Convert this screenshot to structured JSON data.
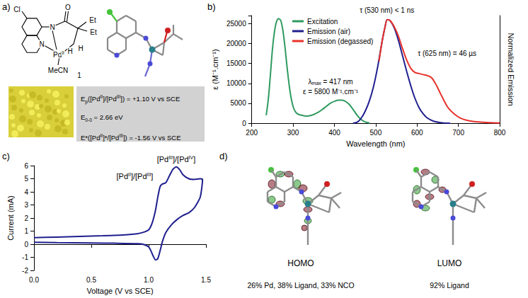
{
  "panel_labels": [
    "a)",
    "b)",
    "c)",
    "d)"
  ],
  "panel_a": {
    "structure_labels": [
      "Cl",
      "N",
      "O",
      "Et",
      "Et",
      "N",
      "PdII",
      "MeCN",
      "H",
      "H"
    ],
    "compound_number": "1",
    "box_lines": [
      "Ep([PdII]/[PdIII]) = +1.10 V vs SCE",
      "E0-0 = 2.66 eV",
      "E*([PdII]*/[PdIII]) = -1.56 V vs SCE"
    ]
  },
  "panel_d": {
    "orbitals": [
      {
        "label": "HOMO",
        "composition": "26% Pd, 38% Ligand, 33% NCO"
      },
      {
        "label": "LUMO",
        "composition": "92% Ligand"
      }
    ]
  },
  "chart_data": [
    {
      "type": "line",
      "x_label": "Wavelength (nm)",
      "y_label": "ε (M⁻¹.cm⁻¹)",
      "y2_label": "Normalized Emission",
      "xlim": [
        200,
        800
      ],
      "xticks": [
        200,
        300,
        400,
        500,
        600,
        700,
        800
      ],
      "ylim": [
        0,
        27000
      ],
      "yticks": [
        0,
        5000,
        10000,
        15000,
        20000,
        25000
      ],
      "y2lim": [
        0,
        1.04
      ],
      "y2ticks": [],
      "grid": false,
      "legend": "upper left",
      "series": [
        {
          "name": "Excitation",
          "color": "#2f9a5f",
          "x": [
            235,
            240,
            245,
            250,
            255,
            260,
            265,
            270,
            275,
            280,
            285,
            290,
            295,
            300,
            305,
            310,
            320,
            330,
            340,
            350,
            360,
            370,
            380,
            390,
            400,
            410,
            417,
            425,
            435,
            445,
            455,
            465,
            475,
            485
          ],
          "values": [
            2000,
            6000,
            12000,
            18500,
            23000,
            25500,
            26200,
            25800,
            23500,
            19500,
            14500,
            10000,
            6500,
            4200,
            3000,
            2400,
            2000,
            1800,
            1900,
            2200,
            2700,
            3400,
            4200,
            5000,
            5500,
            5800,
            5800,
            5600,
            4800,
            3500,
            2000,
            900,
            300,
            80
          ]
        },
        {
          "name": "Emission (air)",
          "color": "#1f1f8f",
          "axis": "y2",
          "x": [
            445,
            455,
            465,
            475,
            485,
            495,
            505,
            515,
            522,
            528,
            535,
            545,
            555,
            565,
            575,
            585,
            595,
            605,
            615,
            625,
            640,
            660,
            680
          ],
          "values": [
            0,
            0.01,
            0.05,
            0.12,
            0.22,
            0.36,
            0.55,
            0.78,
            0.92,
            1.0,
            0.99,
            0.92,
            0.8,
            0.65,
            0.5,
            0.36,
            0.24,
            0.15,
            0.09,
            0.05,
            0.02,
            0.005,
            0
          ]
        },
        {
          "name": "Emission (degassed)",
          "color": "#e8322b",
          "axis": "y2",
          "x": [
            508,
            515,
            522,
            528,
            535,
            545,
            555,
            565,
            575,
            585,
            595,
            605,
            615,
            625,
            635,
            645,
            655,
            665,
            675,
            690,
            705,
            725,
            750,
            775,
            800
          ],
          "values": [
            0.6,
            0.78,
            0.92,
            1.0,
            0.99,
            0.93,
            0.84,
            0.72,
            0.61,
            0.53,
            0.49,
            0.48,
            0.47,
            0.46,
            0.44,
            0.38,
            0.3,
            0.22,
            0.15,
            0.09,
            0.05,
            0.025,
            0.012,
            0.006,
            0.003
          ]
        }
      ],
      "annotations": [
        "λmax = 417 nm",
        "ε = 5800 M⁻¹.cm⁻¹",
        "τ (530 nm) < 1 ns",
        "τ (625 nm) = 46 µs"
      ]
    },
    {
      "type": "line",
      "x_label": "Voltage (V vs SCE)",
      "y_label": "Current (mA)",
      "xlim": [
        0,
        1.5
      ],
      "xticks": [
        {
          "value": 0,
          "label": "0.0"
        },
        {
          "value": 0.5,
          "label": "0.5"
        },
        {
          "value": 1,
          "label": "1.0"
        },
        {
          "value": 1.5,
          "label": "1.5"
        }
      ],
      "ylim": [
        -2,
        6
      ],
      "yticks": [
        -2,
        -1,
        0,
        1,
        2,
        3,
        4,
        5,
        6
      ],
      "grid": false,
      "series": [
        {
          "color": "#1f1f8f",
          "x": [
            0,
            0.2,
            0.4,
            0.6,
            0.8,
            0.9,
            0.95,
            1.0,
            1.03,
            1.06,
            1.08,
            1.1,
            1.12,
            1.15,
            1.18,
            1.21,
            1.24,
            1.27,
            1.3,
            1.35,
            1.4,
            1.45,
            1.47,
            1.45,
            1.4,
            1.35,
            1.3,
            1.25,
            1.2,
            1.15,
            1.12,
            1.1,
            1.08,
            1.06,
            1.04,
            1.02,
            1.0,
            0.95,
            0.9,
            0.7,
            0.5,
            0.2,
            0
          ],
          "values": [
            0.5,
            0.55,
            0.6,
            0.65,
            0.72,
            0.8,
            0.9,
            1.1,
            1.6,
            2.6,
            3.6,
            4.4,
            4.6,
            4.7,
            5.2,
            5.7,
            5.9,
            5.7,
            5.3,
            5.0,
            4.95,
            5.0,
            4.95,
            3.6,
            2.8,
            2.4,
            2.2,
            1.9,
            1.5,
            0.9,
            0.2,
            -0.5,
            -1.1,
            -1.2,
            -0.9,
            -0.5,
            -0.2,
            0.0,
            0.05,
            0.08,
            0.1,
            0.12,
            0.15
          ]
        }
      ],
      "annotations": [
        "[PdII]/[PdIII]",
        "[PdIII]/[PdIV]"
      ]
    }
  ]
}
